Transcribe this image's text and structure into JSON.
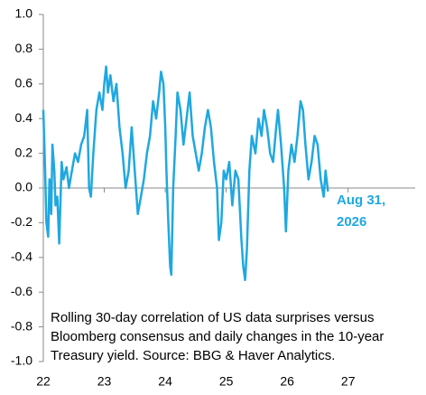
{
  "chart_data": {
    "type": "line",
    "x": [
      22.0,
      22.03,
      22.05,
      22.08,
      22.1,
      22.13,
      22.15,
      22.18,
      22.2,
      22.23,
      22.26,
      22.3,
      22.33,
      22.38,
      22.42,
      22.47,
      22.52,
      22.57,
      22.62,
      22.67,
      22.72,
      22.75,
      22.78,
      22.82,
      22.87,
      22.92,
      22.97,
      23.0,
      23.03,
      23.06,
      23.1,
      23.15,
      23.2,
      23.25,
      23.3,
      23.35,
      23.4,
      23.45,
      23.5,
      23.55,
      23.6,
      23.65,
      23.7,
      23.75,
      23.8,
      23.85,
      23.9,
      23.93,
      23.97,
      24.0,
      24.02,
      24.05,
      24.08,
      24.1,
      24.13,
      24.17,
      24.2,
      24.25,
      24.3,
      24.35,
      24.4,
      24.45,
      24.5,
      24.55,
      24.6,
      24.65,
      24.7,
      24.75,
      24.8,
      24.85,
      24.88,
      24.92,
      24.96,
      25.0,
      25.05,
      25.1,
      25.15,
      25.2,
      25.25,
      25.28,
      25.31,
      25.34,
      25.38,
      25.42,
      25.48,
      25.53,
      25.58,
      25.62,
      25.67,
      25.72,
      25.77,
      25.82,
      25.85,
      25.9,
      25.95,
      25.98,
      26.02,
      26.07,
      26.12,
      26.17,
      26.22,
      26.26,
      26.3,
      26.35,
      26.4,
      26.45,
      26.5,
      26.55,
      26.6,
      26.63,
      26.67
    ],
    "series": [
      {
        "color": "#1fa8e0",
        "values": [
          0.45,
          0.1,
          -0.2,
          -0.28,
          0.05,
          -0.15,
          0.25,
          0.1,
          -0.1,
          -0.05,
          -0.32,
          0.15,
          0.05,
          0.12,
          0.0,
          0.1,
          0.2,
          0.15,
          0.25,
          0.3,
          0.45,
          0.0,
          -0.05,
          0.2,
          0.45,
          0.55,
          0.45,
          0.6,
          0.7,
          0.55,
          0.65,
          0.5,
          0.6,
          0.35,
          0.2,
          0.0,
          0.1,
          0.35,
          0.1,
          -0.15,
          -0.05,
          0.05,
          0.2,
          0.3,
          0.5,
          0.4,
          0.55,
          0.67,
          0.6,
          0.35,
          0.1,
          -0.2,
          -0.45,
          -0.5,
          0.0,
          0.3,
          0.55,
          0.45,
          0.25,
          0.4,
          0.55,
          0.3,
          0.2,
          0.1,
          0.2,
          0.35,
          0.45,
          0.35,
          0.15,
          0.0,
          -0.3,
          -0.2,
          0.1,
          0.05,
          0.15,
          -0.1,
          0.1,
          0.05,
          -0.3,
          -0.45,
          -0.53,
          -0.35,
          0.1,
          0.3,
          0.2,
          0.4,
          0.3,
          0.45,
          0.35,
          0.2,
          0.15,
          0.35,
          0.45,
          0.25,
          0.0,
          -0.25,
          0.1,
          0.25,
          0.15,
          0.3,
          0.5,
          0.45,
          0.25,
          0.05,
          0.15,
          0.3,
          0.25,
          0.05,
          -0.05,
          0.1,
          -0.02
        ]
      }
    ],
    "xlim": [
      22,
      28.1
    ],
    "xticks": [
      22,
      23,
      24,
      25,
      26,
      27
    ],
    "ylim": [
      -1,
      1
    ],
    "yticks": [
      {
        "value": 1,
        "label": "1.0"
      },
      0.8,
      0.6,
      0.4,
      0.2,
      {
        "value": 0,
        "label": "0.0"
      },
      -0.2,
      -0.4,
      -0.6,
      -0.8,
      {
        "value": -1,
        "label": "-1.0"
      }
    ],
    "annotation": [
      "Aug 31,",
      "2026"
    ],
    "caption": [
      "Rolling 30-day correlation of US data surprises versus",
      "Bloomberg consensus and daily changes in the 10-year",
      "Treasury yield. Source: BBG & Haver Analytics."
    ]
  }
}
